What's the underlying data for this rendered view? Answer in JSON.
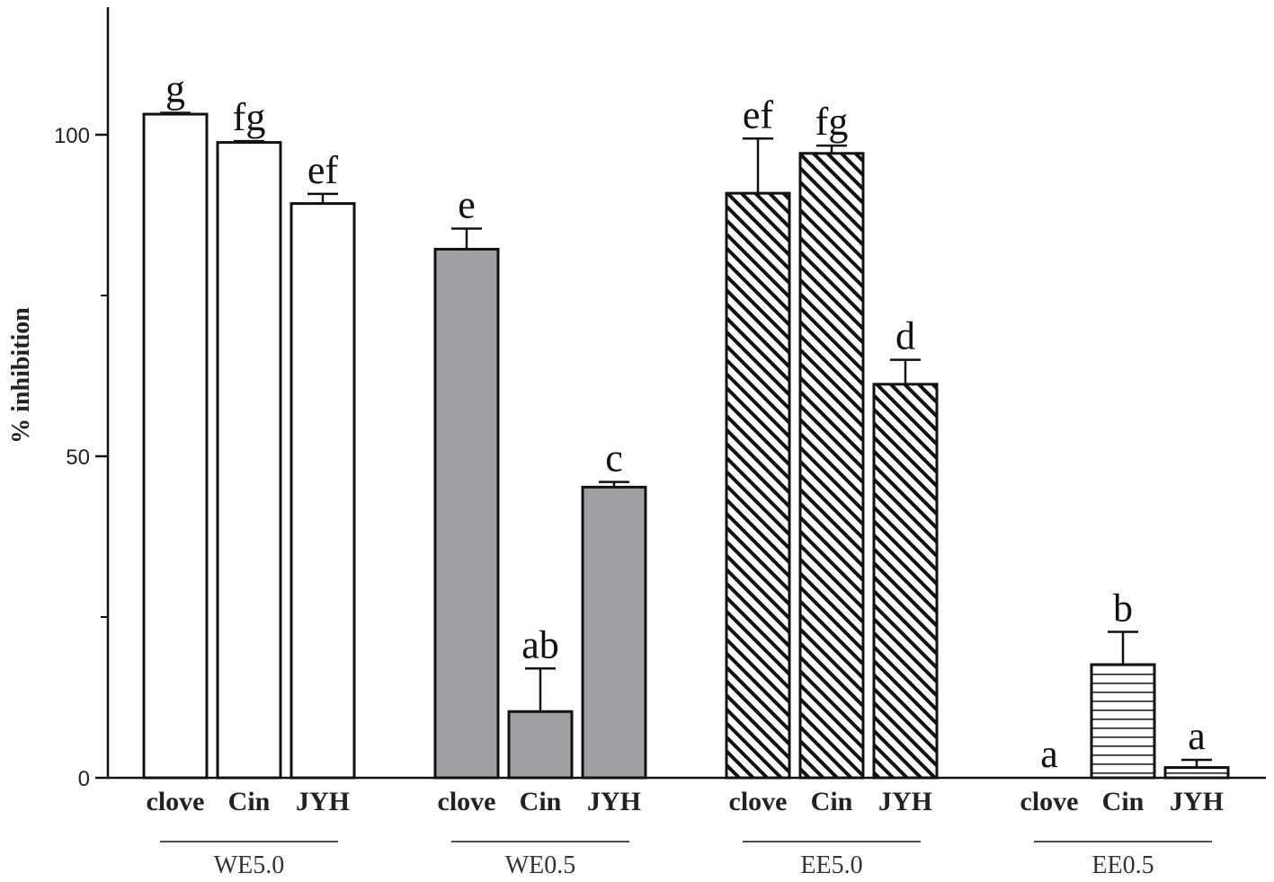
{
  "chart_data": {
    "type": "bar",
    "ylabel": "% inhibition",
    "ylim": [
      0,
      120
    ],
    "yticks": [
      0,
      50,
      100
    ],
    "grid": false,
    "categories": [
      "clove",
      "Cin",
      "JYH"
    ],
    "groups": [
      {
        "label": "WE5.0",
        "fill": "white",
        "values": [
          103.2,
          98.8,
          89.3
        ],
        "errors": [
          0.2,
          0.2,
          1.5
        ],
        "letters": [
          "g",
          "fg",
          "ef"
        ]
      },
      {
        "label": "WE0.5",
        "fill": "gray",
        "color": "#a0a0a4",
        "values": [
          82.2,
          10.3,
          45.2
        ],
        "errors": [
          3.2,
          6.7,
          0.8
        ],
        "letters": [
          "e",
          "ab",
          "c"
        ]
      },
      {
        "label": "EE5.0",
        "fill": "diagonal-hatch",
        "values": [
          90.9,
          97.1,
          61.2
        ],
        "errors": [
          8.5,
          1.2,
          3.8
        ],
        "letters": [
          "ef",
          "fg",
          "d"
        ]
      },
      {
        "label": "EE0.5",
        "fill": "horizontal-lines",
        "values": [
          0,
          17.6,
          1.6
        ],
        "errors": [
          0,
          5.1,
          1.2
        ],
        "letters": [
          "a",
          "b",
          "a"
        ]
      }
    ]
  }
}
